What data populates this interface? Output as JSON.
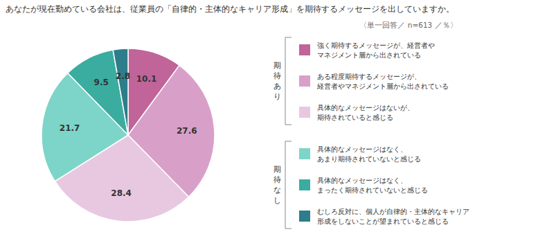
{
  "chart_data": {
    "type": "pie",
    "title": "あなたが現在勤めている会社は、従業員の「自律的・主体的なキャリア形成」を期待するメッセージを出していますか。",
    "subtitle": "〈単一回答／ n=613 ／％〉",
    "categories": [
      [
        "強く期待するメッセージが、経営者や",
        "マネジメント層から出されている"
      ],
      [
        "ある程度期待するメッセージが、",
        "経営者やマネジメント層から出されている"
      ],
      [
        "具体的なメッセージはないが、",
        "期待されていると感じる"
      ],
      [
        "具体的なメッセージはなく、",
        "あまり期待されていないと感じる"
      ],
      [
        "具体的なメッセージはなく、",
        "まったく期待されていないと感じる"
      ],
      [
        "むしろ反対に、個人が自律的・主体的なキャリア",
        "形成をしないことが望まれていると感じる"
      ]
    ],
    "values": [
      10.1,
      27.6,
      28.4,
      21.7,
      9.5,
      2.8
    ],
    "colors": [
      "#c0649a",
      "#d8a0c8",
      "#e8c8e0",
      "#7dd4c8",
      "#3aada0",
      "#2d7d8a"
    ],
    "annotations": [
      "期\n待\nあ\nり",
      "期\n待\nな\nし"
    ],
    "data_labels": true,
    "legend": "right"
  }
}
